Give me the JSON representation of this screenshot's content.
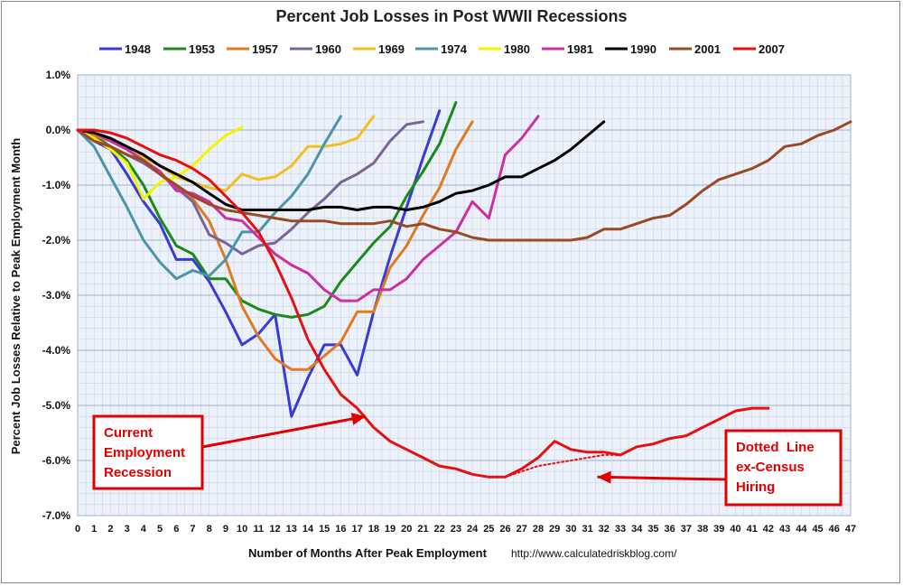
{
  "chart_data": {
    "type": "line",
    "title": "Percent Job Losses in Post WWII Recessions",
    "xlabel": "Number of Months After Peak Employment",
    "ylabel": "Percent Job Losses Relative to Peak Employment Month",
    "source": "http://www.calculatedriskblog.com/",
    "xlim": [
      0,
      47
    ],
    "ylim": [
      -7.0,
      1.0
    ],
    "x_ticks": [
      "0",
      "1",
      "2",
      "3",
      "4",
      "5",
      "6",
      "7",
      "8",
      "9",
      "10",
      "11",
      "12",
      "13",
      "14",
      "15",
      "16",
      "17",
      "18",
      "19",
      "20",
      "21",
      "22",
      "23",
      "24",
      "25",
      "26",
      "27",
      "28",
      "29",
      "30",
      "31",
      "32",
      "33",
      "34",
      "35",
      "36",
      "37",
      "38",
      "39",
      "40",
      "41",
      "42",
      "43",
      "44",
      "45",
      "46",
      "47"
    ],
    "y_ticks": [
      "1.0%",
      "0.0%",
      "-1.0%",
      "-2.0%",
      "-3.0%",
      "-4.0%",
      "-5.0%",
      "-6.0%",
      "-7.0%"
    ],
    "grid": true,
    "legend_placement": "top",
    "series": [
      {
        "name": "1948",
        "color": "#3a3ad6",
        "values": [
          0.0,
          -0.2,
          -0.35,
          -0.8,
          -1.3,
          -1.7,
          -2.35,
          -2.35,
          -2.75,
          -3.3,
          -3.9,
          -3.7,
          -3.35,
          -5.2,
          -4.5,
          -3.9,
          -3.9,
          -4.45,
          -3.3,
          -2.3,
          -1.4,
          -0.5,
          0.35
        ]
      },
      {
        "name": "1953",
        "color": "#1a8a1a",
        "values": [
          0.0,
          -0.1,
          -0.3,
          -0.55,
          -1.0,
          -1.6,
          -2.1,
          -2.25,
          -2.7,
          -2.7,
          -3.1,
          -3.25,
          -3.35,
          -3.4,
          -3.35,
          -3.2,
          -2.75,
          -2.4,
          -2.05,
          -1.75,
          -1.2,
          -0.75,
          -0.25,
          0.5
        ]
      },
      {
        "name": "1957",
        "color": "#e07a20",
        "values": [
          0.0,
          -0.1,
          -0.2,
          -0.35,
          -0.55,
          -0.8,
          -1.0,
          -1.25,
          -1.65,
          -2.35,
          -3.2,
          -3.75,
          -4.15,
          -4.35,
          -4.35,
          -4.1,
          -3.85,
          -3.3,
          -3.3,
          -2.5,
          -2.1,
          -1.55,
          -1.05,
          -0.35,
          0.15
        ]
      },
      {
        "name": "1960",
        "color": "#7a6496",
        "values": [
          0.0,
          -0.15,
          -0.3,
          -0.45,
          -0.6,
          -0.8,
          -1.05,
          -1.3,
          -1.9,
          -2.05,
          -2.25,
          -2.1,
          -2.05,
          -1.8,
          -1.5,
          -1.25,
          -0.95,
          -0.8,
          -0.6,
          -0.2,
          0.1,
          0.15
        ]
      },
      {
        "name": "1969",
        "color": "#f0c020",
        "values": [
          0.0,
          -0.05,
          -0.2,
          -0.35,
          -0.5,
          -0.65,
          -0.85,
          -0.95,
          -1.05,
          -1.1,
          -0.8,
          -0.9,
          -0.85,
          -0.65,
          -0.3,
          -0.3,
          -0.25,
          -0.15,
          0.25
        ]
      },
      {
        "name": "1974",
        "color": "#4a96a8",
        "values": [
          0.0,
          -0.3,
          -0.85,
          -1.4,
          -2.0,
          -2.4,
          -2.7,
          -2.55,
          -2.65,
          -2.35,
          -1.85,
          -1.85,
          -1.5,
          -1.2,
          -0.8,
          -0.25,
          0.25
        ]
      },
      {
        "name": "1980",
        "color": "#f4f400",
        "values": [
          0.0,
          -0.15,
          -0.35,
          -0.6,
          -1.25,
          -0.95,
          -0.85,
          -0.65,
          -0.35,
          -0.1,
          0.05
        ]
      },
      {
        "name": "1981",
        "color": "#cc2fa0",
        "values": [
          0.0,
          -0.05,
          -0.2,
          -0.35,
          -0.55,
          -0.75,
          -1.1,
          -1.15,
          -1.3,
          -1.6,
          -1.65,
          -1.95,
          -2.25,
          -2.45,
          -2.6,
          -2.9,
          -3.1,
          -3.1,
          -2.9,
          -2.9,
          -2.7,
          -2.35,
          -2.1,
          -1.85,
          -1.3,
          -1.6,
          -0.45,
          -0.15,
          0.25
        ]
      },
      {
        "name": "1990",
        "color": "#000000",
        "values": [
          0.0,
          -0.05,
          -0.15,
          -0.3,
          -0.45,
          -0.65,
          -0.8,
          -0.95,
          -1.15,
          -1.35,
          -1.45,
          -1.45,
          -1.45,
          -1.45,
          -1.45,
          -1.4,
          -1.4,
          -1.45,
          -1.4,
          -1.4,
          -1.45,
          -1.4,
          -1.3,
          -1.15,
          -1.1,
          -1.0,
          -0.85,
          -0.85,
          -0.7,
          -0.55,
          -0.35,
          -0.1,
          0.15
        ]
      },
      {
        "name": "2001",
        "color": "#9a4a22",
        "values": [
          0.0,
          -0.2,
          -0.3,
          -0.45,
          -0.55,
          -0.8,
          -1.0,
          -1.2,
          -1.35,
          -1.45,
          -1.5,
          -1.55,
          -1.6,
          -1.65,
          -1.65,
          -1.65,
          -1.7,
          -1.7,
          -1.7,
          -1.65,
          -1.75,
          -1.7,
          -1.8,
          -1.85,
          -1.95,
          -2.0,
          -2.0,
          -2.0,
          -2.0,
          -2.0,
          -2.0,
          -1.95,
          -1.8,
          -1.8,
          -1.7,
          -1.6,
          -1.55,
          -1.35,
          -1.1,
          -0.9,
          -0.8,
          -0.7,
          -0.55,
          -0.3,
          -0.25,
          -0.1,
          0.0,
          0.15
        ]
      },
      {
        "name": "2007",
        "color": "#e61010",
        "values": [
          0.0,
          0.0,
          -0.05,
          -0.15,
          -0.3,
          -0.45,
          -0.55,
          -0.7,
          -0.9,
          -1.2,
          -1.5,
          -1.85,
          -2.4,
          -3.05,
          -3.8,
          -4.35,
          -4.8,
          -5.05,
          -5.4,
          -5.65,
          -5.8,
          -5.95,
          -6.1,
          -6.15,
          -6.25,
          -6.3,
          -6.3,
          -6.15,
          -5.95,
          -5.65,
          -5.8,
          -5.85,
          -5.85,
          -5.9,
          -5.75,
          -5.7,
          -5.6,
          -5.55,
          -5.4,
          -5.25,
          -5.1,
          -5.05,
          -5.05
        ]
      },
      {
        "name": "",
        "color": "#e61010",
        "dotted": true,
        "x": [
          26,
          27,
          28,
          29,
          30,
          31,
          32,
          33
        ],
        "values": [
          -6.3,
          -6.2,
          -6.1,
          -6.05,
          -6.0,
          -5.95,
          -5.9,
          -5.9
        ]
      }
    ],
    "annotations": [
      {
        "lines": [
          "Current",
          "Employment",
          "Recession"
        ],
        "arrow_to": {
          "x": 17.5,
          "y": -5.2
        }
      },
      {
        "lines": [
          "Dotted  Line",
          "ex-Census",
          "Hiring"
        ],
        "arrow_to": {
          "x": 31.6,
          "y": -6.3
        }
      }
    ]
  }
}
